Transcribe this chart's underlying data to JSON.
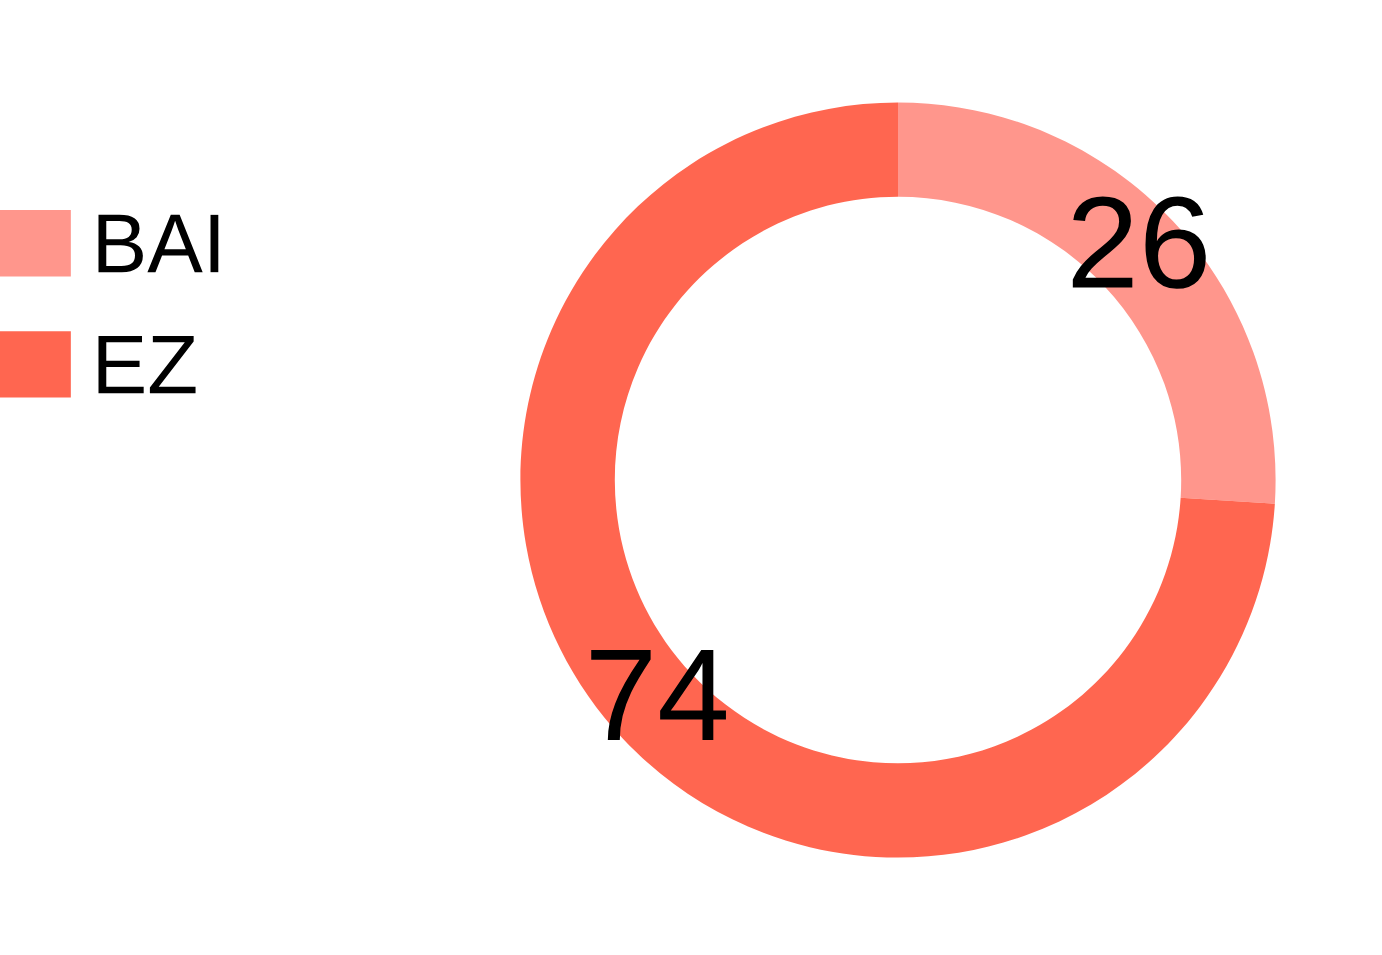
{
  "chart_data": {
    "type": "donut",
    "categories": [
      "BAI",
      "EZ"
    ],
    "values": [
      26,
      74
    ],
    "colors": [
      "#ff968c",
      "#ff6650"
    ],
    "data_labels": true,
    "legend": "left"
  }
}
